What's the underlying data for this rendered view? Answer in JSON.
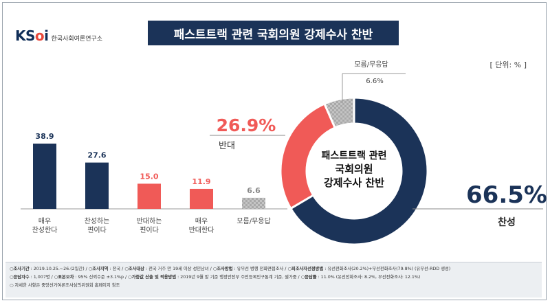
{
  "logo": {
    "mark_k": "K",
    "mark_s": "S",
    "mark_o": "o",
    "mark_i": "i",
    "subtitle": "한국사회여론연구소"
  },
  "title": "패스트트랙 관련 국회의원 강제수사 찬반",
  "unit": "[ 단위: % ]",
  "colors": {
    "navy": "#1b3358",
    "red": "#f05a57",
    "gray": "#bdbdbd"
  },
  "chart_data": [
    {
      "type": "bar",
      "categories": [
        "매우\n찬성한다",
        "찬성하는\n편이다",
        "반대하는\n편이다",
        "매우\n반대한다",
        "모름/무응답"
      ],
      "values": [
        38.9,
        27.6,
        15.0,
        11.9,
        6.6
      ],
      "value_labels": [
        "38.9",
        "27.6",
        "15.0",
        "11.9",
        "6.6"
      ],
      "colors": [
        "navy",
        "navy",
        "red",
        "red",
        "gray"
      ],
      "ylim": [
        0,
        45
      ]
    },
    {
      "type": "pie",
      "donut": true,
      "center_text": [
        "패스트트랙 관련",
        "국회의원",
        "강제수사 찬반"
      ],
      "slices": [
        {
          "label": "찬성",
          "value": 66.5,
          "value_label": "66.5%",
          "color": "navy"
        },
        {
          "label": "반대",
          "value": 26.9,
          "value_label": "26.9%",
          "color": "red"
        },
        {
          "label": "모름/무응답",
          "value": 6.6,
          "value_label": "6.6%",
          "color": "gray"
        }
      ]
    }
  ],
  "footer": {
    "line1": [
      {
        "key": "조사기간",
        "text": ": 2019.10.25.~26.(2일간)"
      },
      {
        "key": "조사지역",
        "text": ": 전국"
      },
      {
        "key": "조사대상",
        "text": ": 전국 거주 만 19세 이상 성인남녀"
      },
      {
        "key": "조사방법",
        "text": ": 유무선 병행 전화면접조사"
      },
      {
        "key": "피조사자선정방법",
        "text": ": 유선전화조사(20.2%)+무선전화조사(79.8%) (유무선-RDD 생성)"
      }
    ],
    "line2": [
      {
        "key": "응답자수",
        "text": ": 1,007명"
      },
      {
        "key": "표본오차",
        "text": ": 95% 신뢰수준 ±3.1%p"
      },
      {
        "key": "가중값 산출 및 적용방법",
        "text": ": 2019년 9월 말 기준 행정안전부 주민등록인구통계 기준, 셀가중"
      },
      {
        "key": "응답률",
        "text": ": 11.0% (유선전화조사: 8.2%, 무선전화조사: 12.1%)"
      }
    ],
    "line3": "자세한 사항은 중앙선거여론조사심의위원회 홈페이지 참조"
  }
}
